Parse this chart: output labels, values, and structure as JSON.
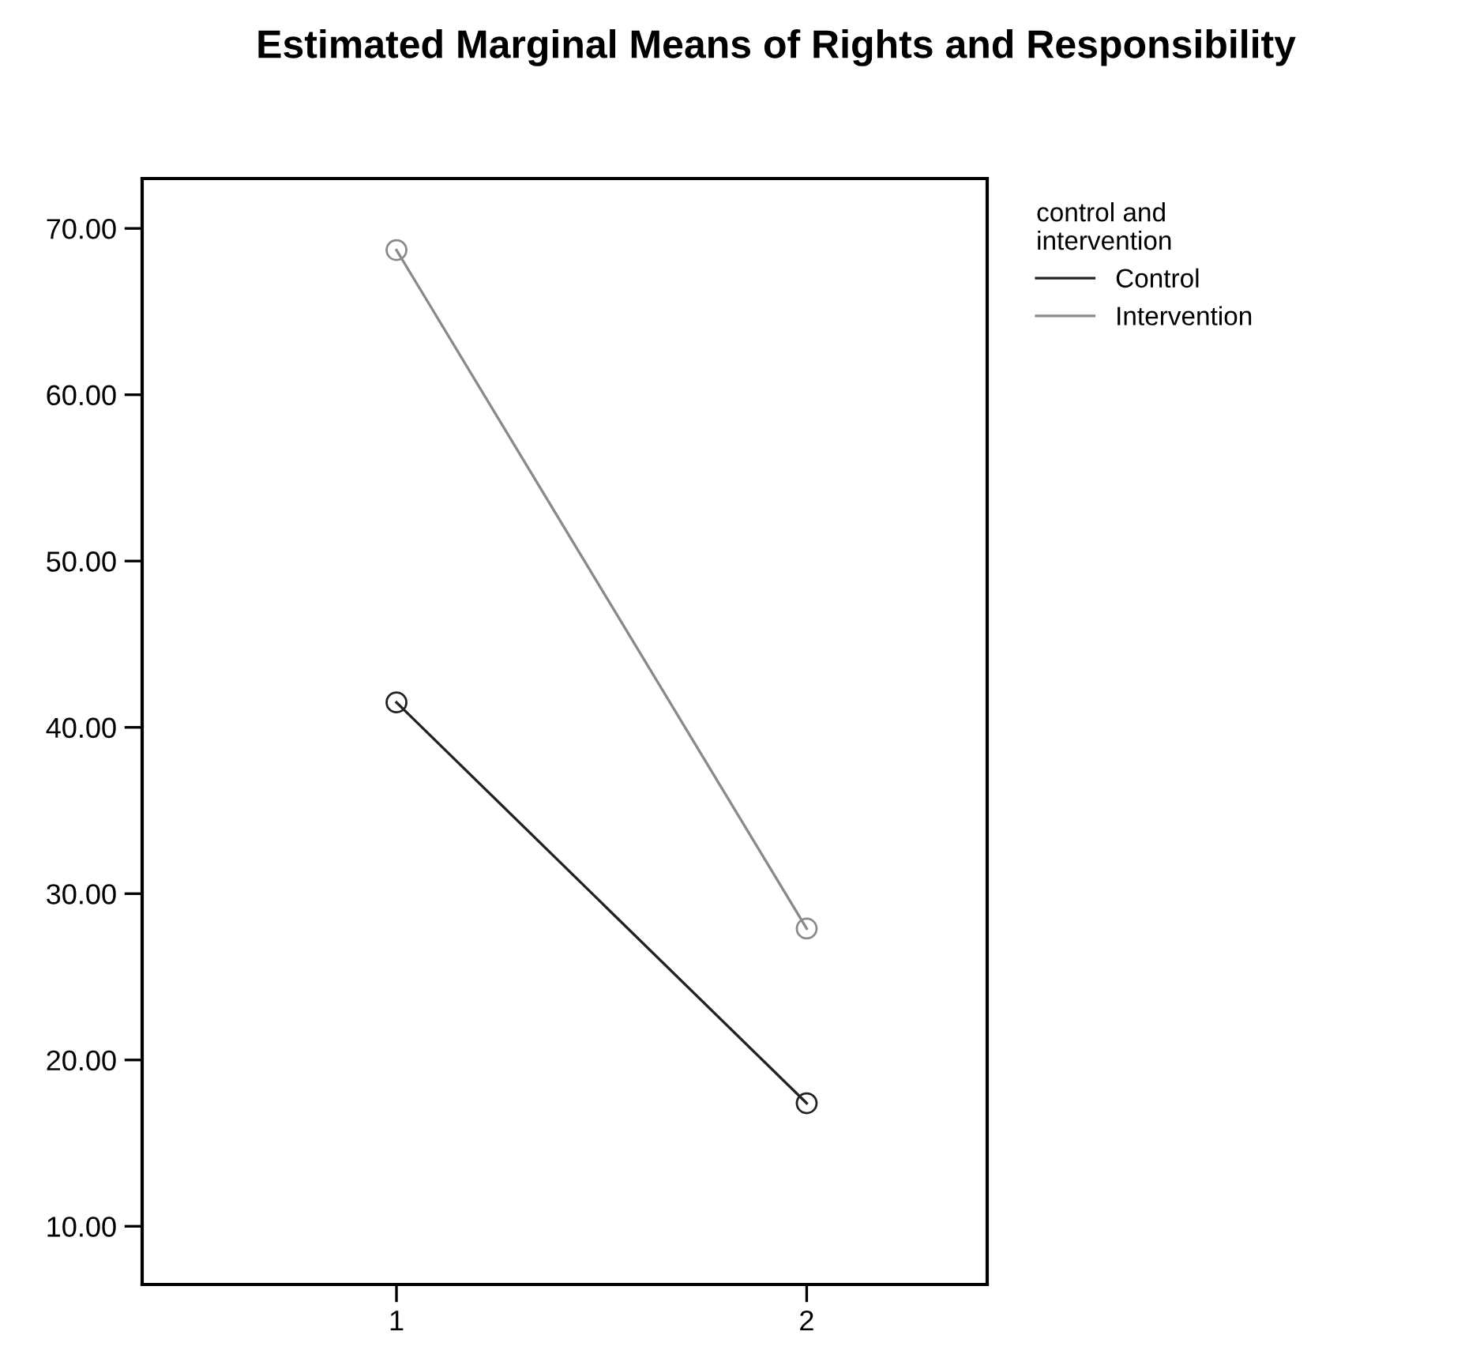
{
  "chart_data": {
    "type": "line",
    "title": "Estimated Marginal Means of Rights and Responsibility",
    "legend_title": "control and\nintervention",
    "x": [
      1,
      2
    ],
    "series": [
      {
        "name": "Control",
        "color": "#222222",
        "values": [
          41.5,
          17.4
        ]
      },
      {
        "name": "Intervention",
        "color": "#8a8a8a",
        "values": [
          68.7,
          27.9
        ]
      }
    ],
    "xlim": [
      0.38,
      2.44
    ],
    "xticks": [
      1,
      2
    ],
    "ylim": [
      6.5,
      73
    ],
    "yticks": [
      {
        "value": 10,
        "label": "10.00"
      },
      {
        "value": 20,
        "label": "20.00"
      },
      {
        "value": 30,
        "label": "30.00"
      },
      {
        "value": 40,
        "label": "40.00"
      },
      {
        "value": 50,
        "label": "50.00"
      },
      {
        "value": 60,
        "label": "60.00"
      },
      {
        "value": 70,
        "label": "70.00"
      }
    ],
    "marker": "circle",
    "line_style": "solid",
    "grid": false,
    "legend": "top right"
  }
}
